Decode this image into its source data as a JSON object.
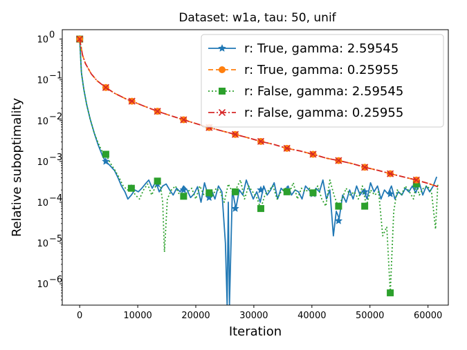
{
  "chart_data": {
    "type": "line",
    "title": "Dataset: w1a, tau: 50, unif",
    "xlabel": "Iteration",
    "ylabel": "Relative suboptimality",
    "xlim": [
      -3000,
      63500
    ],
    "ylim": [
      3e-07,
      1.7
    ],
    "yscale": "log",
    "xticks": [
      0,
      10000,
      20000,
      30000,
      40000,
      50000,
      60000
    ],
    "xtick_labels": [
      "0",
      "10000",
      "20000",
      "30000",
      "40000",
      "50000",
      "60000"
    ],
    "yticks": [
      1e-06,
      1e-05,
      0.0001,
      0.001,
      0.01,
      0.1,
      1
    ],
    "ytick_labels": [
      [
        "10",
        "−6"
      ],
      [
        "10",
        "−5"
      ],
      [
        "10",
        "−4"
      ],
      [
        "10",
        "−3"
      ],
      [
        "10",
        "−2"
      ],
      [
        "10",
        "−1"
      ],
      [
        "10",
        "0"
      ]
    ],
    "grid": false,
    "legend_position": "top-right",
    "series": [
      {
        "name": "r: True, gamma: 2.59545",
        "color": "#1f77b4",
        "linestyle": "solid",
        "marker": "star",
        "x": [
          0,
          300,
          700,
          1200,
          1800,
          2500,
          3200,
          4000,
          4500,
          5200,
          6000,
          6600,
          7200,
          7800,
          8300,
          8900,
          9500,
          10100,
          10700,
          11300,
          11900,
          12500,
          13100,
          13700,
          14300,
          14900,
          15500,
          16100,
          16700,
          17300,
          17900,
          18500,
          19100,
          19700,
          20300,
          20900,
          21500,
          22100,
          22700,
          23300,
          23900,
          24500,
          25100,
          25400,
          25600,
          25800,
          26300,
          26900,
          27500,
          28100,
          28700,
          29300,
          29900,
          30500,
          31100,
          31700,
          32300,
          32900,
          33500,
          34100,
          34700,
          35300,
          35900,
          36500,
          37100,
          37700,
          38300,
          38900,
          39500,
          40100,
          40700,
          41300,
          41900,
          42500,
          43100,
          43700,
          44200,
          44700,
          45300,
          45900,
          46500,
          47100,
          47700,
          48300,
          48900,
          49500,
          50100,
          50700,
          51300,
          51900,
          52500,
          53100,
          53700,
          54300,
          54900,
          55500,
          56100,
          56700,
          57300,
          57900,
          58500,
          59100,
          59700,
          60300,
          60900,
          61500
        ],
        "values": [
          1.0,
          0.15,
          0.06,
          0.025,
          0.011,
          0.005,
          0.0025,
          0.0013,
          0.001,
          0.0008,
          0.0006,
          0.0004,
          0.00025,
          0.00018,
          0.00012,
          0.00015,
          0.0002,
          0.00018,
          0.00022,
          0.00028,
          0.00035,
          0.00022,
          0.00032,
          0.00018,
          0.00025,
          0.00028,
          0.0002,
          0.00015,
          0.00022,
          0.00018,
          0.00025,
          0.0002,
          0.00013,
          0.00016,
          0.00024,
          0.0001,
          0.0003,
          0.00015,
          0.0002,
          0.00012,
          0.00025,
          0.00018,
          1e-05,
          3e-07,
          0.0001,
          3e-07,
          0.0002,
          7e-05,
          0.0002,
          0.00015,
          0.00035,
          0.0002,
          0.00012,
          0.00018,
          0.0001,
          0.00025,
          0.00015,
          0.0002,
          0.0003,
          0.00012,
          0.00022,
          0.00018,
          0.00025,
          0.00015,
          0.0002,
          0.00018,
          0.00012,
          0.00025,
          0.0002,
          0.00015,
          0.00022,
          0.00018,
          0.00035,
          0.00012,
          0.0002,
          1.5e-05,
          6e-05,
          4e-05,
          0.00015,
          0.0001,
          0.0002,
          0.00012,
          0.00025,
          0.00015,
          0.0002,
          0.00012,
          0.0003,
          0.00018,
          0.00025,
          0.00012,
          0.0002,
          0.00016,
          0.00025,
          0.00012,
          0.00018,
          0.00015,
          0.00022,
          0.00018,
          0.00025,
          0.00017,
          0.0003,
          0.00015,
          0.00025,
          0.00018,
          0.00025,
          0.00042
        ],
        "marker_x": [
          0,
          4500,
          8900,
          13400,
          17900,
          22300,
          26800,
          31200,
          35700,
          40200,
          44600,
          49100,
          53500,
          58000
        ],
        "marker_values": [
          1.0,
          0.001,
          0.00022,
          0.00028,
          0.0002,
          0.00013,
          7e-05,
          0.0002,
          0.0002,
          0.00016,
          3.5e-05,
          0.00018,
          0.00016,
          0.00025
        ]
      },
      {
        "name": "r: True, gamma: 0.25955",
        "color": "#ff7f0e",
        "linestyle": "dashed",
        "marker": "circle",
        "x": [
          0,
          500,
          1000,
          2000,
          3000,
          4500,
          6000,
          8000,
          9000,
          11000,
          13400,
          15500,
          17900,
          20000,
          22300,
          24500,
          26800,
          29000,
          31200,
          33500,
          35700,
          38000,
          40200,
          42500,
          44600,
          47000,
          49100,
          51500,
          53500,
          56000,
          58000,
          60000,
          61700
        ],
        "values": [
          1.0,
          0.4,
          0.25,
          0.14,
          0.095,
          0.065,
          0.047,
          0.034,
          0.03,
          0.023,
          0.017,
          0.0135,
          0.0105,
          0.0085,
          0.0068,
          0.0056,
          0.0046,
          0.0038,
          0.0031,
          0.0026,
          0.0021,
          0.0018,
          0.0015,
          0.0012,
          0.00105,
          0.00088,
          0.00072,
          0.0006,
          0.0005,
          0.00041,
          0.00035,
          0.00029,
          0.00024
        ],
        "marker_x": [
          0,
          4500,
          9000,
          13400,
          17900,
          22300,
          26800,
          31200,
          35700,
          40200,
          44600,
          49100,
          53500,
          58000
        ],
        "marker_values": [
          1.0,
          0.065,
          0.03,
          0.017,
          0.0105,
          0.0068,
          0.0046,
          0.0031,
          0.0021,
          0.0015,
          0.00105,
          0.00072,
          0.0005,
          0.00035
        ]
      },
      {
        "name": "r: False, gamma: 2.59545",
        "color": "#2ca02c",
        "linestyle": "dotted",
        "marker": "square",
        "x": [
          0,
          300,
          700,
          1200,
          1800,
          2500,
          3200,
          4000,
          4500,
          5300,
          6100,
          6800,
          7500,
          8200,
          8900,
          9600,
          10300,
          11000,
          11700,
          12400,
          13100,
          13800,
          14300,
          14600,
          15100,
          15800,
          16500,
          17200,
          17900,
          18600,
          19300,
          20000,
          20700,
          21400,
          22100,
          22800,
          23500,
          24200,
          24900,
          25600,
          26300,
          27000,
          27700,
          28400,
          29100,
          29800,
          30500,
          31200,
          31900,
          32600,
          33300,
          34000,
          34700,
          35400,
          36100,
          36800,
          37500,
          38200,
          38900,
          39600,
          40300,
          41000,
          41700,
          42400,
          43100,
          43800,
          44500,
          45200,
          45900,
          46600,
          47300,
          48000,
          48700,
          49400,
          50100,
          50800,
          51500,
          52200,
          52900,
          53500,
          54100,
          54700,
          55400,
          56100,
          56800,
          57500,
          58000,
          58500,
          59200,
          59900,
          60600,
          61300,
          61700
        ],
        "values": [
          1.0,
          0.15,
          0.06,
          0.025,
          0.011,
          0.005,
          0.0028,
          0.0016,
          0.0015,
          0.0009,
          0.0006,
          0.0004,
          0.00025,
          0.0002,
          0.00022,
          0.00015,
          0.00012,
          0.0002,
          0.00028,
          0.00015,
          0.00025,
          0.00033,
          0.0001,
          6e-06,
          0.00012,
          0.0002,
          0.00025,
          0.00015,
          0.00014,
          0.00018,
          0.00022,
          0.00012,
          0.00025,
          0.00015,
          0.00017,
          0.00013,
          0.00022,
          0.00018,
          0.0001,
          0.00028,
          0.00018,
          0.00022,
          0.00035,
          0.00012,
          0.00025,
          0.00018,
          0.00013,
          7e-05,
          0.00015,
          0.0002,
          0.00025,
          0.00012,
          0.00018,
          0.00022,
          0.00017,
          0.0003,
          0.00012,
          0.00022,
          0.00018,
          0.00022,
          0.00017,
          0.00025,
          0.00012,
          8e-05,
          0.00035,
          0.00015,
          8e-05,
          0.00012,
          0.00022,
          0.00015,
          0.00018,
          0.00012,
          0.00025,
          8e-05,
          0.0002,
          0.00015,
          0.00018,
          1.5e-05,
          2.5e-05,
          6e-07,
          6e-05,
          0.0002,
          0.00015,
          0.00025,
          0.00018,
          0.00012,
          0.00028,
          0.00015,
          0.00022,
          0.00025,
          0.00018,
          2.2e-05,
          0.0003
        ],
        "marker_x": [
          0,
          4500,
          8900,
          13400,
          17900,
          22300,
          26800,
          31200,
          35700,
          40200,
          44600,
          49100,
          53500,
          58000
        ],
        "marker_values": [
          1.0,
          0.0015,
          0.00022,
          0.00033,
          0.00014,
          0.00017,
          0.00018,
          7e-05,
          0.00018,
          0.00017,
          8e-05,
          8e-05,
          6e-07,
          0.00028
        ]
      },
      {
        "name": "r: False, gamma: 0.25955",
        "color": "#d62728",
        "linestyle": "dashdot",
        "marker": "x",
        "x": [
          0,
          500,
          1000,
          2000,
          3000,
          4500,
          6000,
          8000,
          9000,
          11000,
          13400,
          15500,
          17900,
          20000,
          22300,
          24500,
          26800,
          29000,
          31200,
          33500,
          35700,
          38000,
          40200,
          42500,
          44600,
          47000,
          49100,
          51500,
          53500,
          56000,
          58000,
          60000,
          61700
        ],
        "values": [
          1.0,
          0.4,
          0.25,
          0.14,
          0.095,
          0.065,
          0.047,
          0.034,
          0.03,
          0.023,
          0.017,
          0.0135,
          0.0105,
          0.0085,
          0.0068,
          0.0056,
          0.0046,
          0.0038,
          0.0031,
          0.0026,
          0.0021,
          0.0018,
          0.0015,
          0.0012,
          0.00105,
          0.00088,
          0.00072,
          0.0006,
          0.0005,
          0.00041,
          0.00035,
          0.00029,
          0.00024
        ],
        "marker_x": [
          0,
          4500,
          9000,
          13400,
          17900,
          22300,
          26800,
          31200,
          35700,
          40200,
          44600,
          49100,
          53500,
          58000
        ],
        "marker_values": [
          1.0,
          0.065,
          0.03,
          0.017,
          0.0105,
          0.0068,
          0.0046,
          0.0031,
          0.0021,
          0.0015,
          0.00105,
          0.00072,
          0.0005,
          0.00035
        ]
      }
    ]
  }
}
